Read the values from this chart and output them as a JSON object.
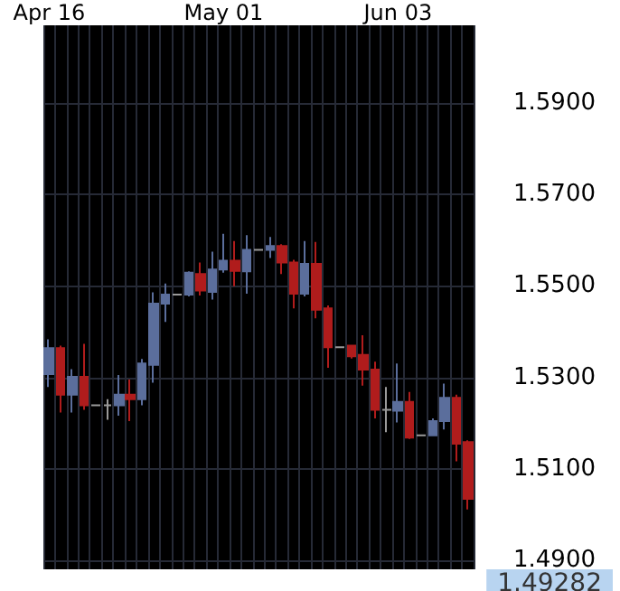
{
  "chart_data": {
    "type": "candlestick",
    "categories": [
      "Apr 16",
      null,
      null,
      null,
      null,
      null,
      null,
      null,
      null,
      null,
      null,
      null,
      null,
      null,
      null,
      "May 01",
      null,
      null,
      null,
      null,
      null,
      null,
      null,
      null,
      null,
      null,
      null,
      null,
      null,
      null,
      "Jun 03",
      null,
      null,
      null,
      null,
      null,
      null
    ],
    "ohlc": [
      [
        1.5307,
        1.5383,
        1.5279,
        1.5364
      ],
      [
        1.5364,
        1.5369,
        1.5223,
        1.5262
      ],
      [
        1.5262,
        1.5318,
        1.5223,
        1.5301
      ],
      [
        1.5301,
        1.5373,
        1.5229,
        1.5239
      ],
      [
        1.5239,
        1.5241,
        1.5237,
        1.5239
      ],
      [
        1.5239,
        1.5252,
        1.5207,
        1.5239
      ],
      [
        1.5239,
        1.5305,
        1.5216,
        1.5262
      ],
      [
        1.5262,
        1.5295,
        1.5204,
        1.5252
      ],
      [
        1.5252,
        1.534,
        1.5239,
        1.533
      ],
      [
        1.5327,
        1.5486,
        1.5288,
        1.5461
      ],
      [
        1.5461,
        1.5505,
        1.5421,
        1.5481
      ],
      [
        1.5481,
        1.5483,
        1.5479,
        1.5481
      ],
      [
        1.5481,
        1.5532,
        1.5477,
        1.5529
      ],
      [
        1.5526,
        1.5551,
        1.5479,
        1.549
      ],
      [
        1.5487,
        1.5575,
        1.547,
        1.5536
      ],
      [
        1.5536,
        1.5614,
        1.5529,
        1.5555
      ],
      [
        1.5555,
        1.5598,
        1.5499,
        1.5533
      ],
      [
        1.5532,
        1.5611,
        1.5483,
        1.5579
      ],
      [
        1.5579,
        1.5581,
        1.5577,
        1.5579
      ],
      [
        1.5579,
        1.5607,
        1.5561,
        1.5587
      ],
      [
        1.5587,
        1.5591,
        1.5526,
        1.5551
      ],
      [
        1.5551,
        1.5557,
        1.5451,
        1.5483
      ],
      [
        1.5483,
        1.5598,
        1.5477,
        1.5548
      ],
      [
        1.5548,
        1.5596,
        1.5429,
        1.5448
      ],
      [
        1.5451,
        1.5457,
        1.5321,
        1.5366
      ],
      [
        1.5366,
        1.5368,
        1.5364,
        1.5366
      ],
      [
        1.5369,
        1.5371,
        1.5341,
        1.5346
      ],
      [
        1.5349,
        1.5392,
        1.5282,
        1.5317
      ],
      [
        1.5317,
        1.5334,
        1.521,
        1.5229
      ],
      [
        1.5229,
        1.5279,
        1.518,
        1.5229
      ],
      [
        1.5227,
        1.533,
        1.5201,
        1.5246
      ],
      [
        1.5246,
        1.5268,
        1.5165,
        1.5168
      ],
      [
        1.5173,
        1.5175,
        1.5171,
        1.5173
      ],
      [
        1.5173,
        1.521,
        1.5171,
        1.5204
      ],
      [
        1.5204,
        1.5286,
        1.5186,
        1.5255
      ],
      [
        1.5255,
        1.5262,
        1.5116,
        1.5155
      ],
      [
        1.5158,
        1.5162,
        1.5011,
        1.5034
      ]
    ],
    "colors": [
      "#5b6e9c",
      "#b01c1c",
      "#5b6e9c",
      "#b01c1c",
      "#9a9a9a",
      "#9a9a9a",
      "#5b6e9c",
      "#b01c1c",
      "#5b6e9c",
      "#5b6e9c",
      "#5b6e9c",
      "#9a9a9a",
      "#5b6e9c",
      "#b01c1c",
      "#5b6e9c",
      "#5b6e9c",
      "#b01c1c",
      "#5b6e9c",
      "#9a9a9a",
      "#5b6e9c",
      "#b01c1c",
      "#b01c1c",
      "#5b6e9c",
      "#b01c1c",
      "#b01c1c",
      "#9a9a9a",
      "#b01c1c",
      "#b01c1c",
      "#b01c1c",
      "#9a9a9a",
      "#5b6e9c",
      "#b01c1c",
      "#9a9a9a",
      "#5b6e9c",
      "#5b6e9c",
      "#b01c1c",
      "#b01c1c"
    ],
    "ylim": [
      1.488,
      1.607
    ],
    "yticks": [
      {
        "value": 1.49,
        "label": "1.4900"
      },
      {
        "value": 1.51,
        "label": "1.5100"
      },
      {
        "value": 1.53,
        "label": "1.5300"
      },
      {
        "value": 1.55,
        "label": "1.5500"
      },
      {
        "value": 1.57,
        "label": "1.5700"
      },
      {
        "value": 1.59,
        "label": "1.5900"
      }
    ],
    "grid": true,
    "annotations": [
      "1.49282"
    ]
  }
}
